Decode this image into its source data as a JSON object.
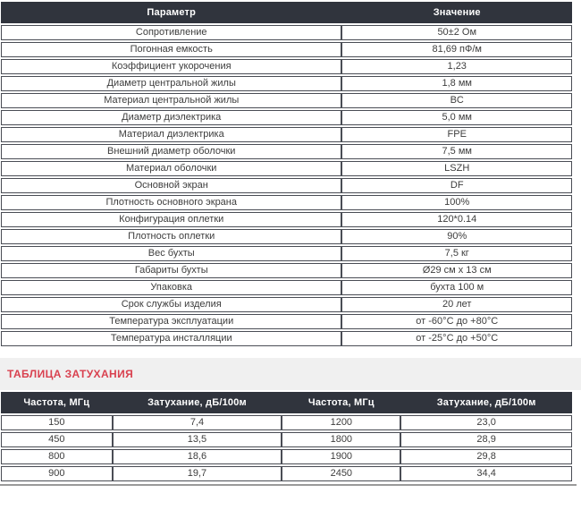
{
  "colors": {
    "header_bg": "#30343d",
    "accent_red": "#d9414f",
    "section_band_bg": "#f0f0f0",
    "cell_border": "#4a4d55"
  },
  "spec_table": {
    "headers": {
      "param": "Параметр",
      "value": "Значение"
    },
    "rows": [
      {
        "param": "Сопротивление",
        "value": "50±2 Ом"
      },
      {
        "param": "Погонная емкость",
        "value": "81,69 пФ/м"
      },
      {
        "param": "Коэффициент укорочения",
        "value": "1,23"
      },
      {
        "param": "Диаметр центральной жилы",
        "value": "1,8 мм"
      },
      {
        "param": "Материал центральной жилы",
        "value": "BC"
      },
      {
        "param": "Диаметр диэлектрика",
        "value": "5,0 мм"
      },
      {
        "param": "Материал диэлектрика",
        "value": "FPE"
      },
      {
        "param": "Внешний диаметр оболочки",
        "value": "7,5 мм"
      },
      {
        "param": "Материал оболочки",
        "value": "LSZH"
      },
      {
        "param": "Основной экран",
        "value": "DF"
      },
      {
        "param": "Плотность основного экрана",
        "value": "100%"
      },
      {
        "param": "Конфигурация оплетки",
        "value": "120*0.14"
      },
      {
        "param": "Плотность оплетки",
        "value": "90%"
      },
      {
        "param": "Вес бухты",
        "value": "7,5 кг"
      },
      {
        "param": "Габариты бухты",
        "value": "Ø29 см х 13 см"
      },
      {
        "param": "Упаковка",
        "value": "бухта 100 м"
      },
      {
        "param": "Срок службы изделия",
        "value": "20 лет"
      },
      {
        "param": "Температура эксплуатации",
        "value": "от -60°С до +80°С"
      },
      {
        "param": "Температура инсталляции",
        "value": "от -25°С до +50°С"
      }
    ]
  },
  "attenuation_section": {
    "title": "ТАБЛИЦА ЗАТУХАНИЯ"
  },
  "attenuation_table": {
    "headers": [
      "Частота, МГц",
      "Затухание, дБ/100м",
      "Частота, МГц",
      "Затухание, дБ/100м"
    ],
    "rows": [
      [
        "150",
        "7,4",
        "1200",
        "23,0"
      ],
      [
        "450",
        "13,5",
        "1800",
        "28,9"
      ],
      [
        "800",
        "18,6",
        "1900",
        "29,8"
      ],
      [
        "900",
        "19,7",
        "2450",
        "34,4"
      ]
    ]
  }
}
